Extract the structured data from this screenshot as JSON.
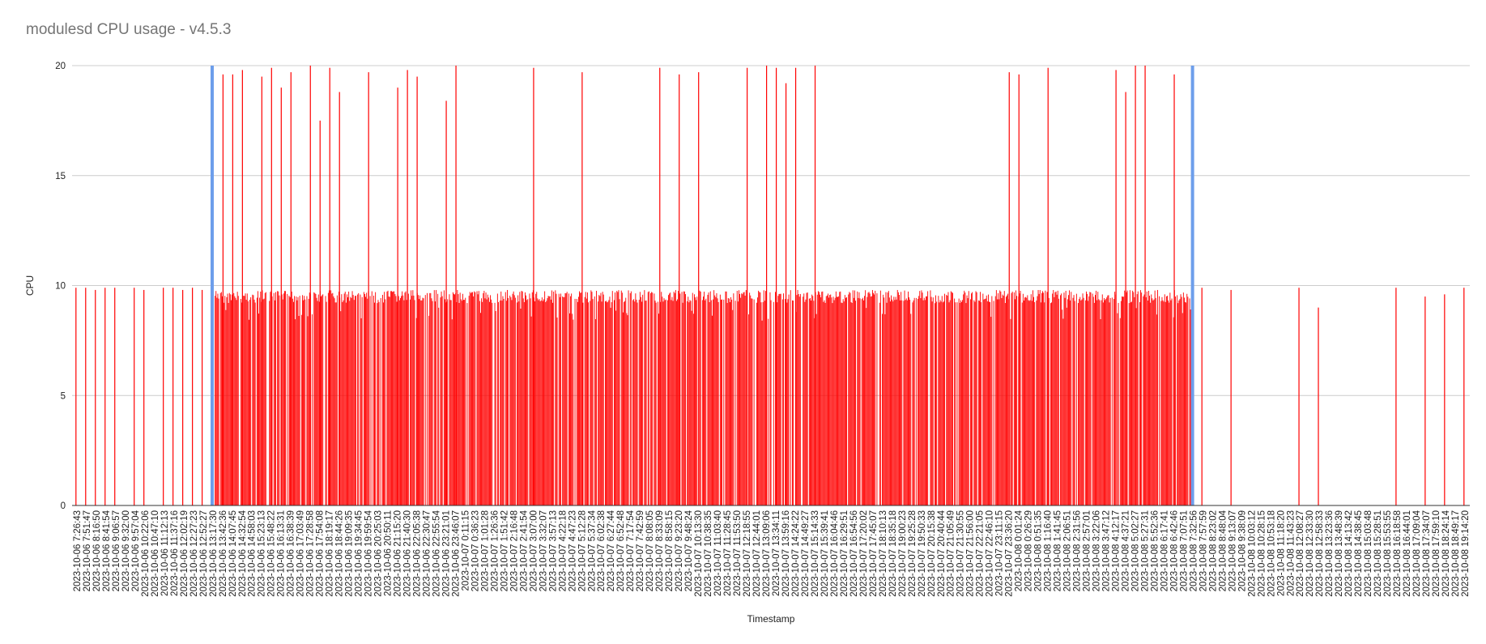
{
  "chart_data": {
    "type": "bar",
    "title": "modulesd CPU usage - v4.5.3",
    "xlabel": "Timestamp",
    "ylabel": "CPU",
    "ylim": [
      0,
      20
    ],
    "yticks": [
      0,
      5,
      10,
      15,
      20
    ],
    "grid": true,
    "legend": "none",
    "colors": {
      "bars": "#ff0000",
      "markers": "#6d9eeb",
      "grid": "#cccccc",
      "text": "#222222",
      "title": "#757575"
    },
    "x_tick_labels": [
      "2023-10-06 7:26:43",
      "2023-10-06 7:51:47",
      "2023-10-06 8:16:50",
      "2023-10-06 8:41:54",
      "2023-10-06 9:06:57",
      "2023-10-06 9:32:00",
      "2023-10-06 9:57:04",
      "2023-10-06 10:22:06",
      "2023-10-06 10:47:10",
      "2023-10-06 11:12:13",
      "2023-10-06 11:37:16",
      "2023-10-06 12:02:19",
      "2023-10-06 12:27:23",
      "2023-10-06 12:52:27",
      "2023-10-06 13:17:30",
      "2023-10-06 13:42:36",
      "2023-10-06 14:07:45",
      "2023-10-06 14:32:54",
      "2023-10-06 14:58:03",
      "2023-10-06 15:23:13",
      "2023-10-06 15:48:22",
      "2023-10-06 16:13:31",
      "2023-10-06 16:38:39",
      "2023-10-06 17:03:49",
      "2023-10-06 17:28:58",
      "2023-10-06 17:54:08",
      "2023-10-06 18:19:17",
      "2023-10-06 18:44:26",
      "2023-10-06 19:09:35",
      "2023-10-06 19:34:45",
      "2023-10-06 19:59:54",
      "2023-10-06 20:25:03",
      "2023-10-06 20:50:11",
      "2023-10-06 21:15:20",
      "2023-10-06 21:40:30",
      "2023-10-06 22:05:38",
      "2023-10-06 22:30:47",
      "2023-10-06 22:55:54",
      "2023-10-06 23:21:01",
      "2023-10-06 23:46:07",
      "2023-10-07 0:11:15",
      "2023-10-07 0:36:23",
      "2023-10-07 1:01:28",
      "2023-10-07 1:26:36",
      "2023-10-07 1:51:42",
      "2023-10-07 2:16:48",
      "2023-10-07 2:41:54",
      "2023-10-07 3:07:00",
      "2023-10-07 3:32:07",
      "2023-10-07 3:57:13",
      "2023-10-07 4:22:18",
      "2023-10-07 4:47:23",
      "2023-10-07 5:12:28",
      "2023-10-07 5:37:34",
      "2023-10-07 6:02:38",
      "2023-10-07 6:27:44",
      "2023-10-07 6:52:48",
      "2023-10-07 7:17:54",
      "2023-10-07 7:42:59",
      "2023-10-07 8:08:05",
      "2023-10-07 8:33:09",
      "2023-10-07 8:58:15",
      "2023-10-07 9:23:20",
      "2023-10-07 9:48:24",
      "2023-10-07 10:13:30",
      "2023-10-07 10:38:35",
      "2023-10-07 11:03:40",
      "2023-10-07 11:28:45",
      "2023-10-07 11:53:50",
      "2023-10-07 12:18:55",
      "2023-10-07 12:44:01",
      "2023-10-07 13:09:06",
      "2023-10-07 13:34:11",
      "2023-10-07 13:59:16",
      "2023-10-07 14:24:22",
      "2023-10-07 14:49:27",
      "2023-10-07 15:14:33",
      "2023-10-07 15:39:41",
      "2023-10-07 16:04:46",
      "2023-10-07 16:29:51",
      "2023-10-07 16:54:56",
      "2023-10-07 17:20:02",
      "2023-10-07 17:45:07",
      "2023-10-07 18:10:13",
      "2023-10-07 18:35:18",
      "2023-10-07 19:00:23",
      "2023-10-07 19:25:28",
      "2023-10-07 19:50:33",
      "2023-10-07 20:15:38",
      "2023-10-07 20:40:44",
      "2023-10-07 21:05:49",
      "2023-10-07 21:30:55",
      "2023-10-07 21:56:00",
      "2023-10-07 22:21:05",
      "2023-10-07 22:46:10",
      "2023-10-07 23:11:15",
      "2023-10-07 23:36:20",
      "2023-10-08 0:01:24",
      "2023-10-08 0:26:29",
      "2023-10-08 0:51:35",
      "2023-10-08 1:16:40",
      "2023-10-08 1:41:45",
      "2023-10-08 2:06:51",
      "2023-10-08 2:31:56",
      "2023-10-08 2:57:01",
      "2023-10-08 3:22:06",
      "2023-10-08 3:47:12",
      "2023-10-08 4:12:17",
      "2023-10-08 4:37:21",
      "2023-10-08 5:02:27",
      "2023-10-08 5:27:31",
      "2023-10-08 5:52:36",
      "2023-10-08 6:17:41",
      "2023-10-08 6:42:46",
      "2023-10-08 7:07:51",
      "2023-10-08 7:32:56",
      "2023-10-08 7:57:59",
      "2023-10-08 8:23:02",
      "2023-10-08 8:48:04",
      "2023-10-08 9:13:07",
      "2023-10-08 9:38:09",
      "2023-10-08 10:03:12",
      "2023-10-08 10:28:15",
      "2023-10-08 10:53:18",
      "2023-10-08 11:18:20",
      "2023-10-08 11:43:23",
      "2023-10-08 12:08:27",
      "2023-10-08 12:33:30",
      "2023-10-08 12:58:33",
      "2023-10-08 13:23:36",
      "2023-10-08 13:48:39",
      "2023-10-08 14:13:42",
      "2023-10-08 14:38:45",
      "2023-10-08 15:03:48",
      "2023-10-08 15:28:51",
      "2023-10-08 15:53:55",
      "2023-10-08 16:18:58",
      "2023-10-08 16:44:01",
      "2023-10-08 17:09:04",
      "2023-10-08 17:34:07",
      "2023-10-08 17:59:10",
      "2023-10-08 18:24:14",
      "2023-10-08 18:49:17",
      "2023-10-08 19:14:20"
    ],
    "markers": [
      {
        "x": "2023-10-06 13:17:30",
        "value": 20,
        "color": "#6d9eeb"
      },
      {
        "x": "2023-10-08 7:32:56",
        "value": 20,
        "color": "#6d9eeb"
      }
    ],
    "sparse_series": {
      "name": "",
      "color": "#ff0000",
      "points": [
        {
          "x": "2023-10-06 7:26:43",
          "value": 9.9
        },
        {
          "x": "2023-10-06 7:51:47",
          "value": 9.9
        },
        {
          "x": "2023-10-06 8:16:50",
          "value": 9.8
        },
        {
          "x": "2023-10-06 8:41:54",
          "value": 9.9
        },
        {
          "x": "2023-10-06 9:06:57",
          "value": 9.9
        },
        {
          "x": "2023-10-06 9:57:04",
          "value": 9.9
        },
        {
          "x": "2023-10-06 10:22:06",
          "value": 9.8
        },
        {
          "x": "2023-10-06 11:12:13",
          "value": 9.9
        },
        {
          "x": "2023-10-06 11:37:16",
          "value": 9.9
        },
        {
          "x": "2023-10-06 12:02:19",
          "value": 9.8
        },
        {
          "x": "2023-10-06 12:27:23",
          "value": 9.9
        },
        {
          "x": "2023-10-06 12:52:27",
          "value": 9.8
        },
        {
          "x": "2023-10-08 7:57:59",
          "value": 9.9
        },
        {
          "x": "2023-10-08 9:13:07",
          "value": 9.8
        },
        {
          "x": "2023-10-08 12:08:27",
          "value": 9.9
        },
        {
          "x": "2023-10-08 12:58:33",
          "value": 9.0
        },
        {
          "x": "2023-10-08 16:18:58",
          "value": 9.9
        },
        {
          "x": "2023-10-08 17:34:07",
          "value": 9.5
        },
        {
          "x": "2023-10-08 18:24:14",
          "value": 9.6
        },
        {
          "x": "2023-10-08 19:14:20",
          "value": 9.9
        }
      ]
    },
    "dense_series": {
      "name": "",
      "color": "#ff0000",
      "x_start": "2023-10-06 13:17:30",
      "x_end": "2023-10-08 7:32:56",
      "baseline": 9.8,
      "peaks": [
        {
          "x": "2023-10-06 13:42:36",
          "value": 19.6
        },
        {
          "x": "2023-10-06 14:07:45",
          "value": 19.6
        },
        {
          "x": "2023-10-06 14:32:54",
          "value": 19.8
        },
        {
          "x": "2023-10-06 15:23:13",
          "value": 19.5
        },
        {
          "x": "2023-10-06 15:48:22",
          "value": 19.9
        },
        {
          "x": "2023-10-06 16:13:31",
          "value": 19.0
        },
        {
          "x": "2023-10-06 16:38:39",
          "value": 19.7
        },
        {
          "x": "2023-10-06 17:28:58",
          "value": 20.0
        },
        {
          "x": "2023-10-06 17:54:08",
          "value": 17.5
        },
        {
          "x": "2023-10-06 18:19:17",
          "value": 19.9
        },
        {
          "x": "2023-10-06 18:44:26",
          "value": 18.8
        },
        {
          "x": "2023-10-06 19:59:54",
          "value": 19.7
        },
        {
          "x": "2023-10-06 21:15:20",
          "value": 19.0
        },
        {
          "x": "2023-10-06 21:40:30",
          "value": 19.8
        },
        {
          "x": "2023-10-06 22:05:38",
          "value": 19.5
        },
        {
          "x": "2023-10-06 23:21:01",
          "value": 18.4
        },
        {
          "x": "2023-10-06 23:46:07",
          "value": 20.0
        },
        {
          "x": "2023-10-07 3:07:00",
          "value": 19.9
        },
        {
          "x": "2023-10-07 5:12:28",
          "value": 19.7
        },
        {
          "x": "2023-10-07 8:33:09",
          "value": 19.9
        },
        {
          "x": "2023-10-07 9:23:20",
          "value": 19.6
        },
        {
          "x": "2023-10-07 10:13:30",
          "value": 19.7
        },
        {
          "x": "2023-10-07 12:18:55",
          "value": 19.9
        },
        {
          "x": "2023-10-07 13:09:06",
          "value": 20.0
        },
        {
          "x": "2023-10-07 13:34:11",
          "value": 19.9
        },
        {
          "x": "2023-10-07 13:59:16",
          "value": 19.2
        },
        {
          "x": "2023-10-07 14:24:22",
          "value": 19.9
        },
        {
          "x": "2023-10-07 15:14:33",
          "value": 20.0
        },
        {
          "x": "2023-10-07 23:36:20",
          "value": 19.7
        },
        {
          "x": "2023-10-08 0:01:24",
          "value": 19.6
        },
        {
          "x": "2023-10-08 1:16:40",
          "value": 19.9
        },
        {
          "x": "2023-10-08 4:12:17",
          "value": 19.8
        },
        {
          "x": "2023-10-08 4:37:21",
          "value": 18.8
        },
        {
          "x": "2023-10-08 5:02:27",
          "value": 20.0
        },
        {
          "x": "2023-10-08 5:27:31",
          "value": 20.0
        },
        {
          "x": "2023-10-08 6:42:46",
          "value": 19.6
        }
      ]
    }
  }
}
